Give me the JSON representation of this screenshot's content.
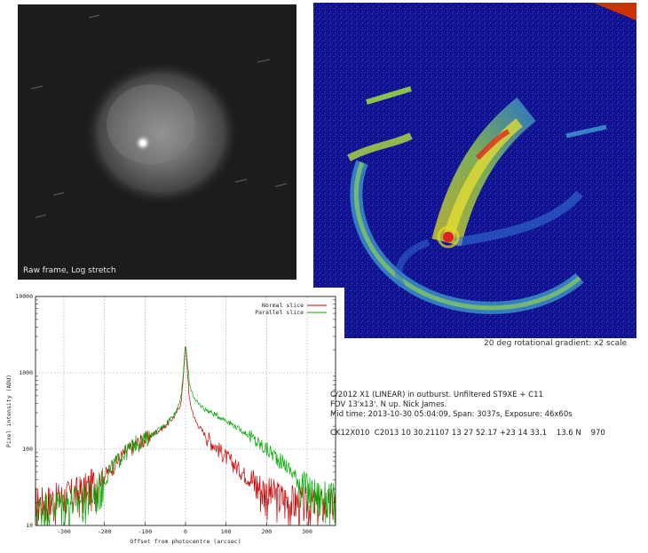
{
  "raw_frame": {
    "caption": "Raw frame, Log stretch"
  },
  "gradient_frame": {
    "caption": "20 deg rotational gradient: x2 scale"
  },
  "info": {
    "line1": "C/2012 X1 (LINEAR) in outburst. Unfiltered ST9XE + C11",
    "line2": "FOV 13'x13'. N up. Nick James.",
    "line3": "Mid time: 2013-10-30 05:04:09, Span: 3037s, Exposure: 46x60s",
    "line4": "CK12X010  C2013 10 30.21107 13 27 52.17 +23 14 33.1    13.6 N    970"
  },
  "colors": {
    "normal": "#cc0000",
    "parallel": "#00aa00",
    "grid": "#999999"
  },
  "chart_data": {
    "type": "line",
    "xlabel": "Offset from photocentre (arcsec)",
    "ylabel": "Pixel intensity (ADU)",
    "xlim": [
      -370,
      370
    ],
    "ylim": [
      10,
      10000
    ],
    "yscale": "log",
    "x_ticks": [
      "-300",
      "-200",
      "-100",
      "0",
      "100",
      "200",
      "300"
    ],
    "y_ticks": [
      "10",
      "100",
      "1000",
      "10000"
    ],
    "legend_position": "top-right",
    "grid": true,
    "series": [
      {
        "name": "Normal slice",
        "color": "#cc0000",
        "points": [
          [
            -370,
            20
          ],
          [
            -300,
            24
          ],
          [
            -250,
            30
          ],
          [
            -200,
            45
          ],
          [
            -150,
            90
          ],
          [
            -120,
            120
          ],
          [
            -100,
            135
          ],
          [
            -75,
            165
          ],
          [
            -50,
            200
          ],
          [
            -25,
            280
          ],
          [
            -10,
            420
          ],
          [
            0,
            2400
          ],
          [
            10,
            420
          ],
          [
            25,
            230
          ],
          [
            50,
            150
          ],
          [
            75,
            110
          ],
          [
            100,
            80
          ],
          [
            125,
            60
          ],
          [
            150,
            45
          ],
          [
            175,
            35
          ],
          [
            200,
            28
          ],
          [
            250,
            22
          ],
          [
            300,
            20
          ],
          [
            370,
            20
          ]
        ]
      },
      {
        "name": "Parallel slice",
        "color": "#00aa00",
        "points": [
          [
            -370,
            16
          ],
          [
            -300,
            20
          ],
          [
            -250,
            22
          ],
          [
            -220,
            28
          ],
          [
            -200,
            40
          ],
          [
            -180,
            60
          ],
          [
            -150,
            90
          ],
          [
            -120,
            125
          ],
          [
            -100,
            135
          ],
          [
            -75,
            165
          ],
          [
            -50,
            210
          ],
          [
            -25,
            300
          ],
          [
            -10,
            500
          ],
          [
            0,
            2400
          ],
          [
            10,
            700
          ],
          [
            25,
            420
          ],
          [
            50,
            330
          ],
          [
            75,
            280
          ],
          [
            100,
            240
          ],
          [
            125,
            195
          ],
          [
            150,
            160
          ],
          [
            175,
            125
          ],
          [
            200,
            100
          ],
          [
            225,
            80
          ],
          [
            250,
            60
          ],
          [
            275,
            42
          ],
          [
            300,
            30
          ],
          [
            325,
            25
          ],
          [
            370,
            22
          ]
        ]
      }
    ]
  }
}
